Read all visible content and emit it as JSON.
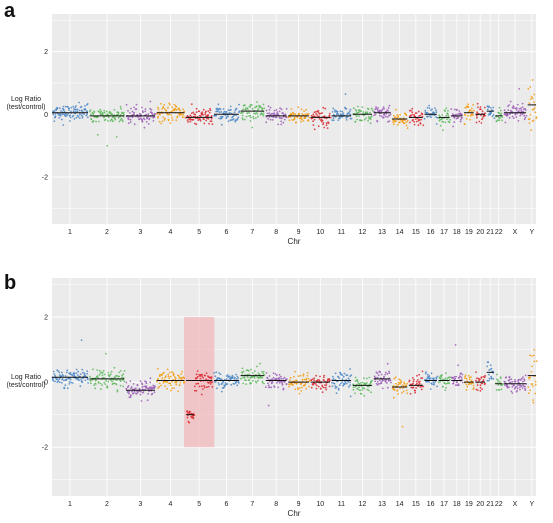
{
  "chart_data": [
    {
      "panel": "a",
      "type": "scatter",
      "title": "",
      "xlabel": "Chr",
      "ylabel": [
        "Log Ratio",
        "(test/control)"
      ],
      "ylim": [
        -3.5,
        3.2
      ],
      "yticks": [
        2,
        0,
        -2
      ],
      "grid": true,
      "categories": [
        "1",
        "2",
        "3",
        "4",
        "5",
        "6",
        "7",
        "8",
        "9",
        "10",
        "11",
        "12",
        "13",
        "14",
        "15",
        "16",
        "17",
        "18",
        "19",
        "20",
        "21",
        "22",
        "X",
        "Y"
      ],
      "segment_means": [
        0.05,
        -0.05,
        -0.05,
        0.05,
        -0.1,
        0.0,
        0.1,
        -0.05,
        -0.05,
        -0.1,
        -0.05,
        0.0,
        0.05,
        -0.15,
        -0.1,
        0.0,
        -0.1,
        -0.05,
        0.05,
        0.0,
        0.1,
        -0.05,
        0.05,
        0.3
      ],
      "highlight": null
    },
    {
      "panel": "b",
      "type": "scatter",
      "title": "",
      "xlabel": "Chr",
      "ylabel": [
        "Log Ratio",
        "(test/control)"
      ],
      "ylim": [
        -3.5,
        3.2
      ],
      "yticks": [
        2,
        0,
        -2
      ],
      "grid": true,
      "categories": [
        "1",
        "2",
        "3",
        "4",
        "5",
        "6",
        "7",
        "8",
        "9",
        "10",
        "11",
        "12",
        "13",
        "14",
        "15",
        "16",
        "17",
        "18",
        "19",
        "20",
        "21",
        "22",
        "X",
        "Y"
      ],
      "segment_means": [
        0.15,
        0.1,
        -0.25,
        0.05,
        0.05,
        0.05,
        0.2,
        0.05,
        0.0,
        0.0,
        0.05,
        -0.1,
        0.1,
        -0.15,
        -0.1,
        0.05,
        0.05,
        0.05,
        0.0,
        0.0,
        0.3,
        -0.05,
        -0.05,
        0.2
      ],
      "chr5_deleted_segment": {
        "ymean": -1.0
      },
      "highlight": {
        "chromosome": "5",
        "y_range": [
          -2.0,
          2.0
        ],
        "color": "#f2b8bc"
      }
    }
  ],
  "colors": {
    "series_cycle": [
      "#4a86c5",
      "#5cb85c",
      "#9b59b6",
      "#f39c12",
      "#d9282f"
    ],
    "panel_bg": "#ebebeb",
    "grid": "#ffffff",
    "segment": "#111111"
  }
}
